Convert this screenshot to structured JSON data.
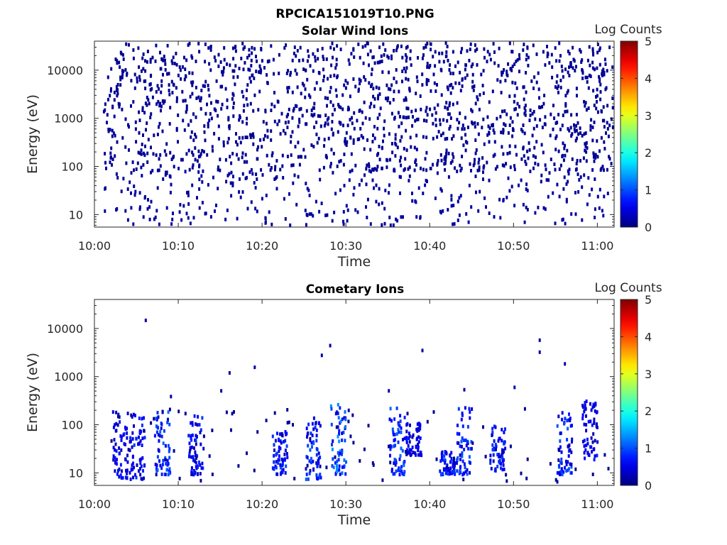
{
  "figure_title": "RPCICA151019T10.PNG",
  "chart_data": [
    {
      "type": "heatmap",
      "title": "Solar Wind Ions",
      "xlabel": "Time",
      "ylabel": "Energy (eV)",
      "x_ticks": [
        "10:00",
        "10:10",
        "10:20",
        "10:30",
        "10:40",
        "10:50",
        "11:00"
      ],
      "x_range": [
        "10:00",
        "11:02"
      ],
      "y_scale": "log",
      "y_ticks": [
        "10",
        "100",
        "1000",
        "10000"
      ],
      "y_range": [
        5.5,
        40000
      ],
      "colorbar": {
        "label": "Log Counts",
        "range": [
          0,
          5
        ],
        "ticks": [
          "0",
          "1",
          "2",
          "3",
          "4",
          "5"
        ],
        "colormap": "jet"
      },
      "pattern": "sparse scattered counts near log value 0 across all energies 90 eV to 40 keV, denser streaks at 6-30 eV",
      "data_start": "10:01",
      "data_end": "11:02"
    },
    {
      "type": "heatmap",
      "title": "Cometary Ions",
      "xlabel": "Time",
      "ylabel": "Energy (eV)",
      "x_ticks": [
        "10:00",
        "10:10",
        "10:20",
        "10:30",
        "10:40",
        "10:50",
        "11:00"
      ],
      "x_range": [
        "10:00",
        "11:02"
      ],
      "y_scale": "log",
      "y_ticks": [
        "10",
        "100",
        "1000",
        "10000"
      ],
      "y_range": [
        5.5,
        40000
      ],
      "colorbar": {
        "label": "Log Counts",
        "range": [
          0,
          5
        ],
        "ticks": [
          "0",
          "1",
          "2",
          "3",
          "4",
          "5"
        ],
        "colormap": "jet"
      },
      "bursts": [
        {
          "t": "10:03",
          "emin": 8,
          "emax": 250,
          "peak": 0.8
        },
        {
          "t": "10:05",
          "emin": 8,
          "emax": 180,
          "peak": 0.9
        },
        {
          "t": "10:08",
          "emin": 10,
          "emax": 200,
          "peak": 1.2
        },
        {
          "t": "10:12",
          "emin": 10,
          "emax": 180,
          "peak": 0.9
        },
        {
          "t": "10:22",
          "emin": 10,
          "emax": 80,
          "peak": 1.0
        },
        {
          "t": "10:26",
          "emin": 8,
          "emax": 150,
          "peak": 1.1
        },
        {
          "t": "10:29",
          "emin": 10,
          "emax": 300,
          "peak": 1.4
        },
        {
          "t": "10:36",
          "emin": 10,
          "emax": 250,
          "peak": 1.2
        },
        {
          "t": "10:38",
          "emin": 25,
          "emax": 120,
          "peak": 0.7
        },
        {
          "t": "10:42",
          "emin": 10,
          "emax": 30,
          "peak": 1.0
        },
        {
          "t": "10:44",
          "emin": 10,
          "emax": 250,
          "peak": 1.1
        },
        {
          "t": "10:48",
          "emin": 12,
          "emax": 110,
          "peak": 0.9
        },
        {
          "t": "10:56",
          "emin": 10,
          "emax": 200,
          "peak": 1.1
        },
        {
          "t": "10:59",
          "emin": 20,
          "emax": 350,
          "peak": 0.8
        }
      ],
      "isolated_points": [
        {
          "t": "10:06",
          "e": 16000
        },
        {
          "t": "10:09",
          "e": 420
        },
        {
          "t": "10:15",
          "e": 550
        },
        {
          "t": "10:16",
          "e": 1300
        },
        {
          "t": "10:19",
          "e": 1700
        },
        {
          "t": "10:27",
          "e": 3000
        },
        {
          "t": "10:28",
          "e": 4800
        },
        {
          "t": "10:35",
          "e": 550
        },
        {
          "t": "10:39",
          "e": 3800
        },
        {
          "t": "10:44",
          "e": 580
        },
        {
          "t": "10:50",
          "e": 650
        },
        {
          "t": "10:53",
          "e": 6200
        },
        {
          "t": "10:53",
          "e": 3500
        },
        {
          "t": "10:56",
          "e": 2000
        }
      ],
      "data_start": "10:01",
      "data_end": "11:02"
    }
  ]
}
